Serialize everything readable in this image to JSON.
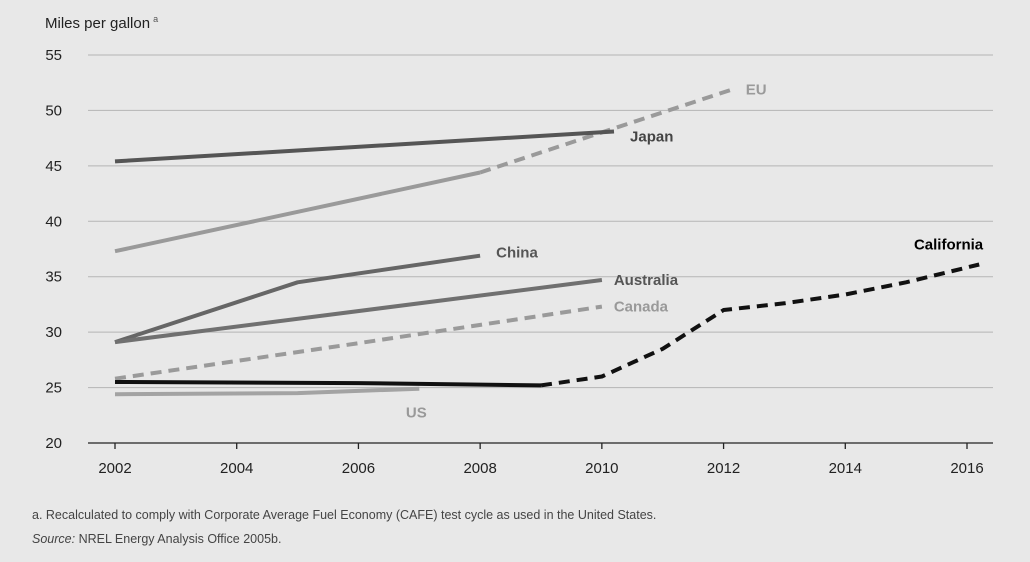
{
  "chart_data": {
    "type": "line",
    "ylabel": "Miles per gallon",
    "ylabel_superscript": "a",
    "xlabel": "",
    "title": "",
    "xlim": [
      2002,
      2016
    ],
    "ylim": [
      20,
      55
    ],
    "x_ticks": [
      "2002",
      "2004",
      "2006",
      "2008",
      "2010",
      "2012",
      "2014",
      "2016"
    ],
    "y_ticks": [
      "20",
      "25",
      "30",
      "35",
      "40",
      "45",
      "50",
      "55"
    ],
    "grid": "horizontal",
    "legend": "inline-labels",
    "series": [
      {
        "name": "EU",
        "color": "#9a9a9a",
        "label_color": "#9a9a9a",
        "width": 4,
        "segments": [
          {
            "style": "solid",
            "points": [
              [
                2002,
                37.3
              ],
              [
                2008,
                44.4
              ]
            ]
          },
          {
            "style": "dashed",
            "points": [
              [
                2008,
                44.4
              ],
              [
                2012.2,
                52.0
              ]
            ]
          }
        ]
      },
      {
        "name": "Japan",
        "color": "#555555",
        "label_color": "#444444",
        "width": 4,
        "segments": [
          {
            "style": "solid",
            "points": [
              [
                2002,
                45.4
              ],
              [
                2010.2,
                48.1
              ]
            ]
          }
        ]
      },
      {
        "name": "China",
        "color": "#666666",
        "label_color": "#555555",
        "width": 4,
        "segments": [
          {
            "style": "solid",
            "points": [
              [
                2002,
                29.1
              ],
              [
                2005,
                34.5
              ],
              [
                2008,
                36.9
              ]
            ]
          }
        ]
      },
      {
        "name": "Australia",
        "color": "#707070",
        "label_color": "#555555",
        "width": 4,
        "segments": [
          {
            "style": "solid",
            "points": [
              [
                2002,
                29.1
              ],
              [
                2010,
                34.7
              ]
            ]
          }
        ]
      },
      {
        "name": "Canada",
        "color": "#9a9a9a",
        "label_color": "#999999",
        "width": 4,
        "segments": [
          {
            "style": "dashed",
            "points": [
              [
                2002,
                25.8
              ],
              [
                2006,
                29.0
              ],
              [
                2010,
                32.3
              ]
            ]
          }
        ]
      },
      {
        "name": "US",
        "color": "#a3a3a3",
        "label_color": "#999999",
        "width": 4,
        "segments": [
          {
            "style": "solid",
            "points": [
              [
                2002,
                24.4
              ],
              [
                2005,
                24.5
              ],
              [
                2007,
                24.9
              ]
            ]
          }
        ]
      },
      {
        "name": "California",
        "color": "#111111",
        "label_color": "#000000",
        "width": 4,
        "segments": [
          {
            "style": "solid",
            "points": [
              [
                2002,
                25.5
              ],
              [
                2006,
                25.4
              ],
              [
                2009,
                25.2
              ]
            ]
          },
          {
            "style": "dashed",
            "points": [
              [
                2009,
                25.2
              ],
              [
                2010,
                26.0
              ],
              [
                2011,
                28.5
              ],
              [
                2012,
                32.0
              ],
              [
                2013,
                32.6
              ],
              [
                2014,
                33.4
              ],
              [
                2015,
                34.5
              ],
              [
                2016.2,
                36.1
              ]
            ]
          }
        ]
      }
    ]
  },
  "footnote": "a. Recalculated to comply with Corporate Average Fuel Economy (CAFE) test cycle as used in the United States.",
  "source": {
    "label": "Source:",
    "text": " NREL Energy Analysis Office 2005b."
  }
}
